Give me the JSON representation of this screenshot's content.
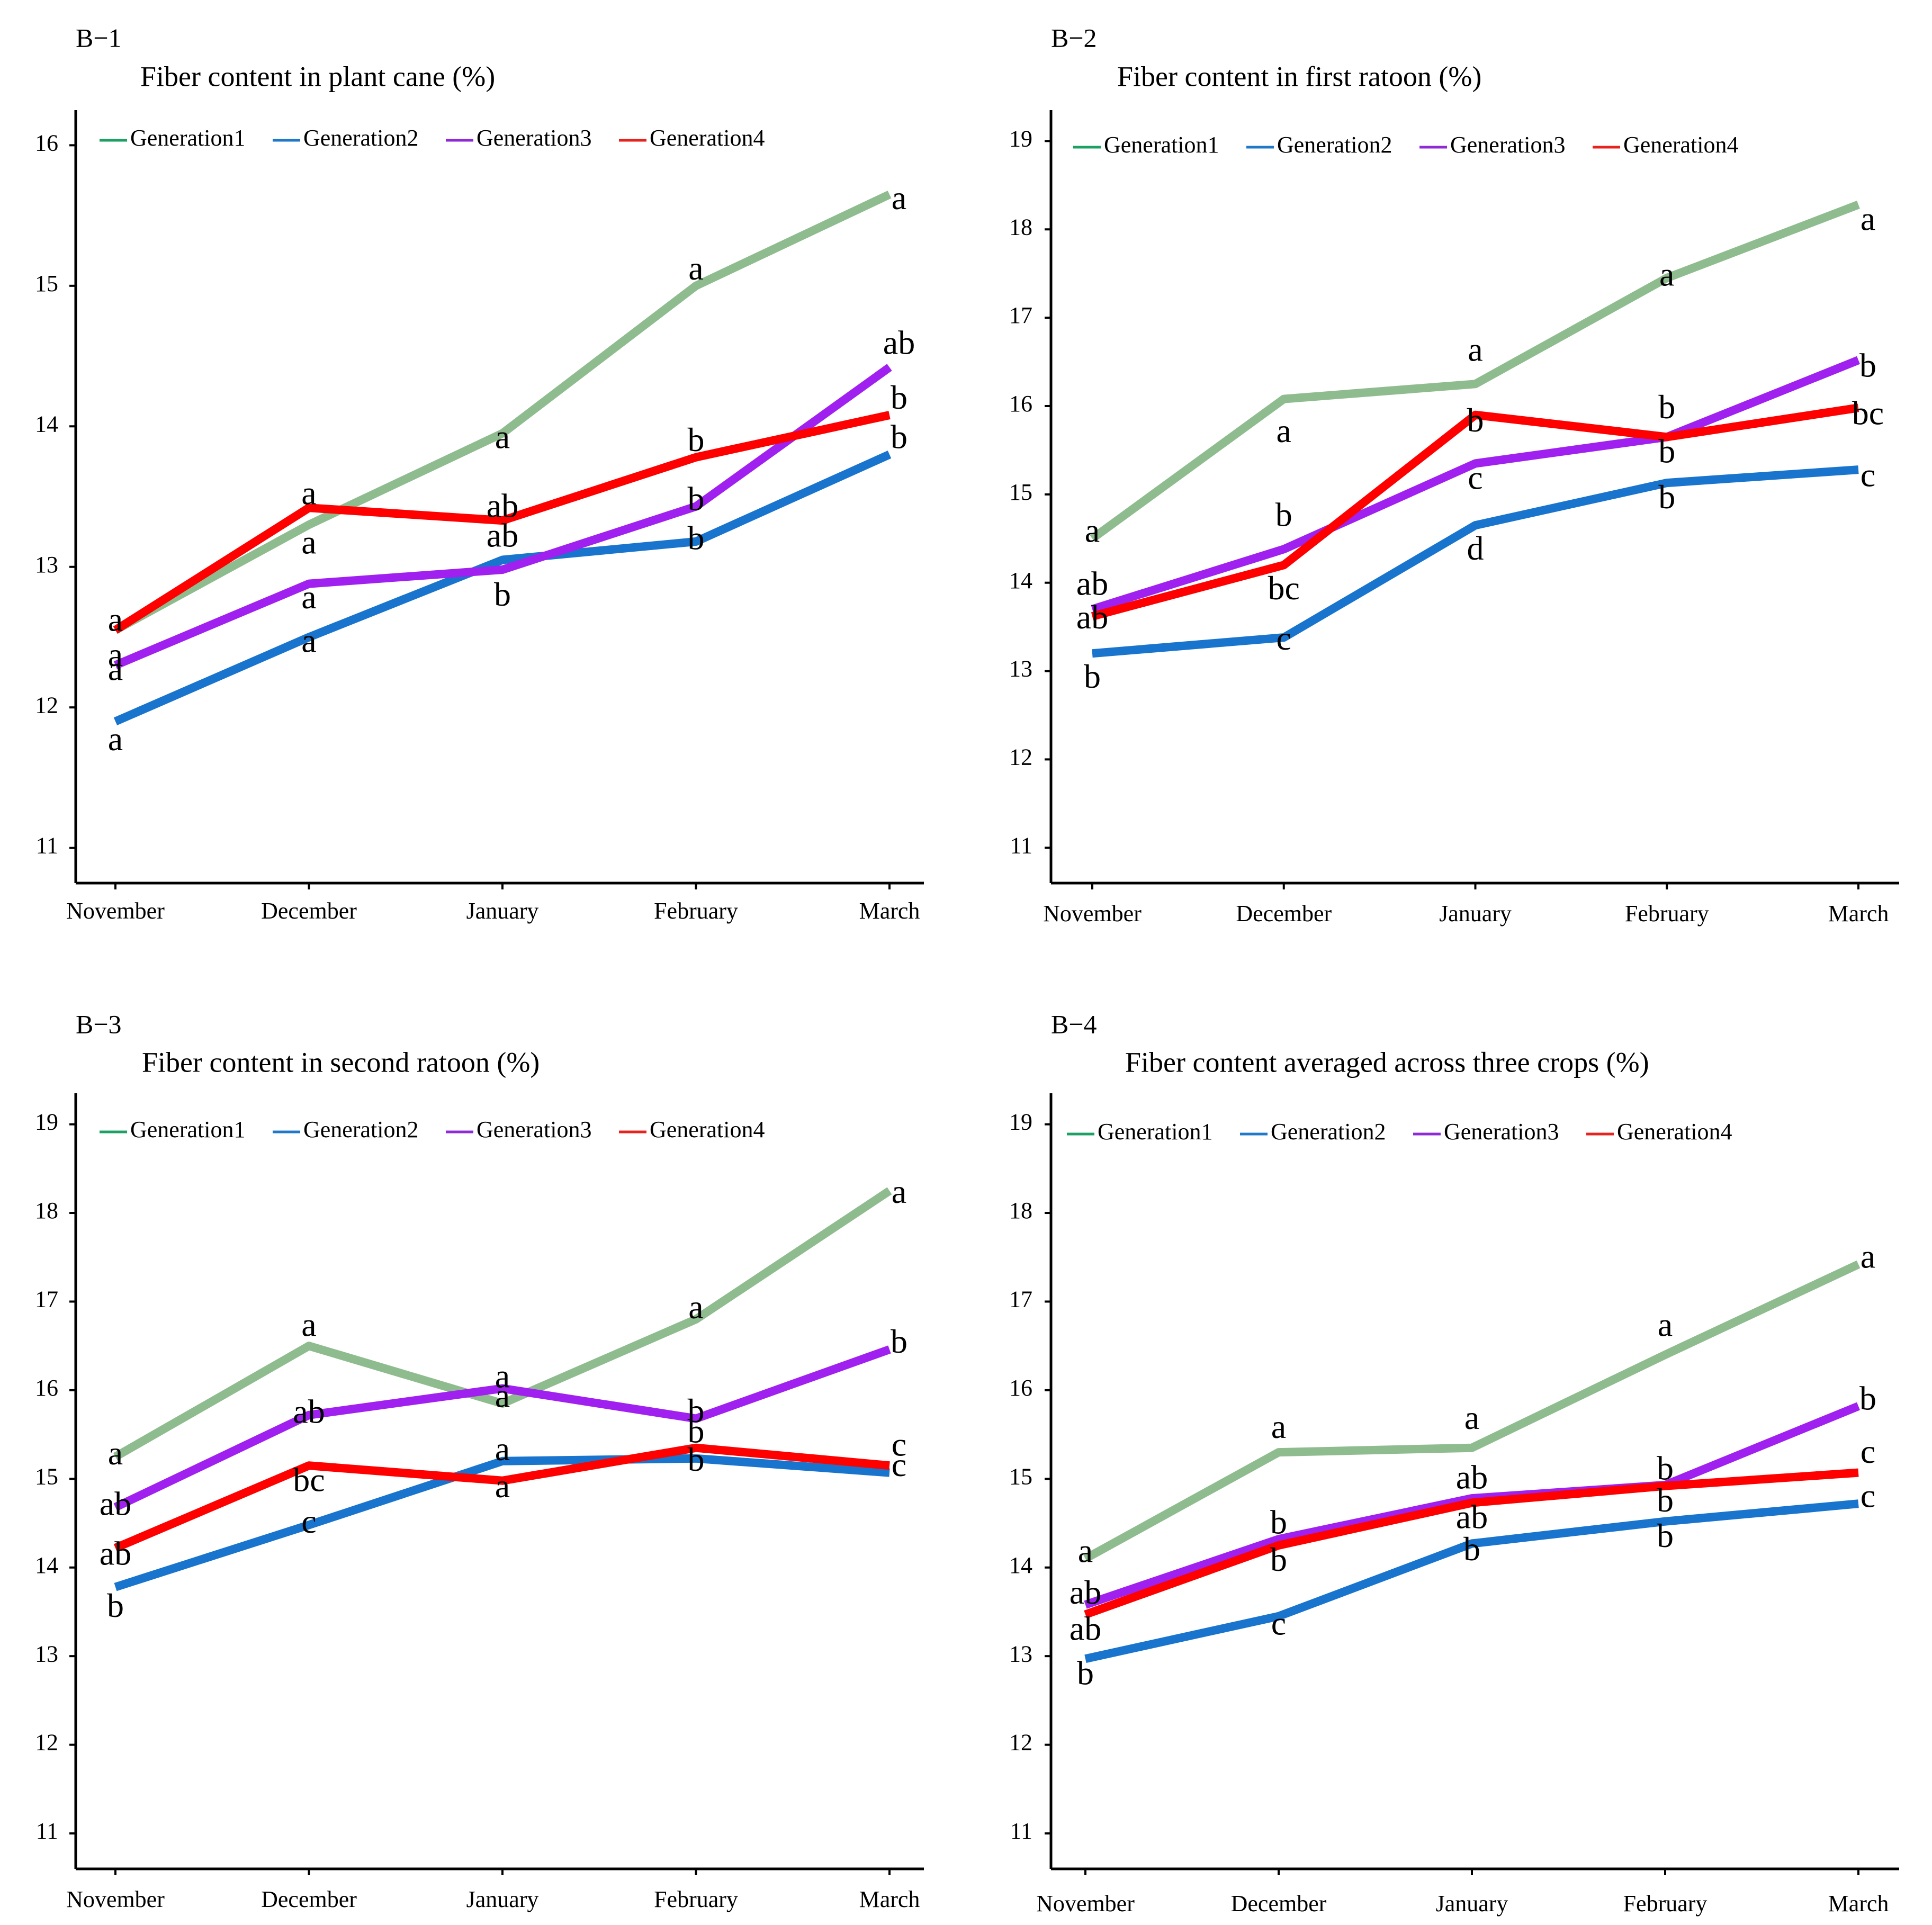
{
  "chart_data": [
    {
      "type": "line",
      "panel": "B−1",
      "title": "Fiber content in  plant cane (%)",
      "categories": [
        "November",
        "December",
        "January",
        "February",
        "March"
      ],
      "ylim": [
        10.75,
        16.25
      ],
      "yticks": [
        11,
        12,
        13,
        14,
        15,
        16
      ],
      "series": [
        {
          "name": "Generation1",
          "values": [
            12.55,
            13.3,
            13.95,
            15.0,
            15.65
          ],
          "labels": [
            "a",
            "a",
            "a",
            "a",
            "a"
          ],
          "label_offsets": [
            -0.3,
            -0.15,
            -0.05,
            0.1,
            -0.05
          ]
        },
        {
          "name": "Generation2",
          "values": [
            11.9,
            12.5,
            13.05,
            13.18,
            13.8
          ],
          "labels": [
            "a",
            "a",
            "ab",
            "b",
            "b"
          ],
          "label_offsets": [
            -0.15,
            -0.05,
            0.15,
            0.0,
            0.1
          ]
        },
        {
          "name": "Generation3",
          "values": [
            12.3,
            12.88,
            12.98,
            13.43,
            14.42
          ],
          "labels": [
            "a",
            "a",
            "b",
            "b",
            "ab"
          ],
          "label_offsets": [
            0.05,
            -0.12,
            -0.2,
            0.03,
            0.15
          ]
        },
        {
          "name": "Generation4",
          "values": [
            12.55,
            13.42,
            13.33,
            13.78,
            14.08
          ],
          "labels": [
            "a",
            "a",
            "ab",
            "b",
            "b"
          ],
          "label_offsets": [
            0.05,
            0.08,
            0.08,
            0.1,
            0.1
          ]
        }
      ]
    },
    {
      "type": "line",
      "panel": "B−2",
      "title": "Fiber content in first ratoon (%)",
      "categories": [
        "November",
        "December",
        "January",
        "February",
        "March"
      ],
      "ylim": [
        10.6,
        19.35
      ],
      "yticks": [
        11,
        12,
        13,
        14,
        15,
        16,
        17,
        18,
        19
      ],
      "series": [
        {
          "name": "Generation1",
          "values": [
            14.5,
            16.08,
            16.25,
            17.45,
            18.28
          ],
          "labels": [
            "a",
            "a",
            "a",
            "a",
            "a"
          ],
          "label_offsets": [
            0.05,
            -0.4,
            0.35,
            0.0,
            -0.2
          ]
        },
        {
          "name": "Generation2",
          "values": [
            13.2,
            13.38,
            14.65,
            15.13,
            15.28
          ],
          "labels": [
            "b",
            "c",
            "d",
            "b",
            "c"
          ],
          "label_offsets": [
            -0.3,
            -0.05,
            -0.3,
            -0.2,
            -0.1
          ]
        },
        {
          "name": "Generation3",
          "values": [
            13.7,
            14.38,
            15.35,
            15.65,
            16.52
          ],
          "labels": [
            "ab",
            "b",
            "c",
            "b",
            "b"
          ],
          "label_offsets": [
            0.25,
            0.35,
            -0.2,
            -0.2,
            -0.1
          ]
        },
        {
          "name": "Generation4",
          "values": [
            13.62,
            14.2,
            15.9,
            15.65,
            15.98
          ],
          "labels": [
            "ab",
            "bc",
            "b",
            "b",
            "bc"
          ],
          "label_offsets": [
            -0.05,
            -0.3,
            -0.1,
            0.3,
            -0.1
          ]
        }
      ]
    },
    {
      "type": "line",
      "panel": "B−3",
      "title": "Fiber content in second ratoon (%)",
      "categories": [
        "November",
        "December",
        "January",
        "February",
        "March"
      ],
      "ylim": [
        10.6,
        19.35
      ],
      "yticks": [
        11,
        12,
        13,
        14,
        15,
        16,
        17,
        18,
        19
      ],
      "series": [
        {
          "name": "Generation1",
          "values": [
            15.25,
            16.5,
            15.85,
            16.8,
            18.25
          ],
          "labels": [
            "a",
            "a",
            "a",
            "a",
            "a"
          ],
          "label_offsets": [
            0.0,
            0.2,
            0.05,
            0.1,
            -0.05
          ]
        },
        {
          "name": "Generation2",
          "values": [
            13.78,
            14.48,
            15.2,
            15.23,
            15.07
          ],
          "labels": [
            "b",
            "c",
            "a",
            "b",
            "c"
          ],
          "label_offsets": [
            -0.25,
            0.0,
            0.1,
            -0.05,
            0.05
          ]
        },
        {
          "name": "Generation3",
          "values": [
            14.68,
            15.72,
            16.02,
            15.68,
            16.46
          ],
          "labels": [
            "ab",
            "ab",
            "a",
            "b",
            "b"
          ],
          "label_offsets": [
            0.0,
            0.0,
            0.1,
            0.05,
            0.05
          ]
        },
        {
          "name": "Generation4",
          "values": [
            14.22,
            15.15,
            14.98,
            15.35,
            15.15
          ],
          "labels": [
            "ab",
            "bc",
            "a",
            "b",
            "c"
          ],
          "label_offsets": [
            -0.1,
            -0.2,
            -0.1,
            0.15,
            0.2
          ]
        }
      ]
    },
    {
      "type": "line",
      "panel": "B−4",
      "title": "Fiber content averaged across three crops (%)",
      "categories": [
        "November",
        "December",
        "January",
        "February",
        "March"
      ],
      "ylim": [
        10.6,
        19.35
      ],
      "yticks": [
        11,
        12,
        13,
        14,
        15,
        16,
        17,
        18,
        19
      ],
      "series": [
        {
          "name": "Generation1",
          "values": [
            14.1,
            15.3,
            15.35,
            16.4,
            17.42
          ],
          "labels": [
            "a",
            "a",
            "a",
            "a",
            "a"
          ],
          "label_offsets": [
            0.05,
            0.25,
            0.3,
            0.3,
            0.05
          ]
        },
        {
          "name": "Generation2",
          "values": [
            12.97,
            13.45,
            14.27,
            14.52,
            14.72
          ],
          "labels": [
            "b",
            "c",
            "b",
            "b",
            "c"
          ],
          "label_offsets": [
            -0.2,
            -0.12,
            -0.1,
            -0.2,
            0.05
          ]
        },
        {
          "name": "Generation3",
          "values": [
            13.58,
            14.32,
            14.78,
            14.93,
            15.82
          ],
          "labels": [
            "ab",
            "b",
            "ab",
            "b",
            "b"
          ],
          "label_offsets": [
            0.1,
            0.15,
            0.2,
            0.15,
            0.05
          ]
        },
        {
          "name": "Generation4",
          "values": [
            13.47,
            14.25,
            14.73,
            14.92,
            15.07
          ],
          "labels": [
            "ab",
            "b",
            "ab",
            "b",
            "c"
          ],
          "label_offsets": [
            -0.2,
            -0.2,
            -0.2,
            -0.2,
            0.2
          ]
        }
      ]
    }
  ],
  "legend": {
    "entries": [
      "Generation1",
      "Generation2",
      "Generation3",
      "Generation4"
    ],
    "position": "top-left"
  },
  "colors": {
    "Generation1": "#8fbc8f",
    "Generation2": "#1874cd",
    "Generation3": "#a020f0",
    "Generation4": "#ff0000",
    "legend_key": {
      "Generation1": "#1ca063",
      "Generation2": "#1f78c8",
      "Generation3": "#8e2ad6",
      "Generation4": "#e8221e"
    }
  }
}
